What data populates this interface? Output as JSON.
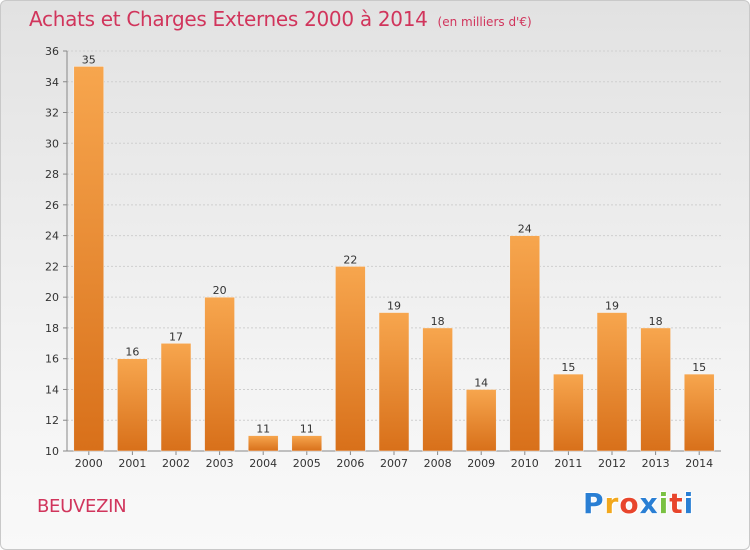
{
  "title": "Achats et Charges Externes 2000 à 2014",
  "unit": "(en milliers d'€)",
  "place": "BEUVEZIN",
  "logo": {
    "text": "Proxiti",
    "letters": [
      {
        "ch": "P",
        "color": "#2a7fd4"
      },
      {
        "ch": "r",
        "color": "#f2a81d"
      },
      {
        "ch": "o",
        "color": "#e8452c"
      },
      {
        "ch": "x",
        "color": "#2a7fd4"
      },
      {
        "ch": "i",
        "color": "#7ac142"
      },
      {
        "ch": "t",
        "color": "#e8452c"
      },
      {
        "ch": "i",
        "color": "#2a7fd4"
      }
    ]
  },
  "colors": {
    "bar_top": "#f7a64e",
    "bar_bottom": "#d8701a",
    "text": "#d1355c",
    "grid": "#cfcfcf"
  },
  "chart_data": {
    "type": "bar",
    "title": "Achats et Charges Externes 2000 à 2014",
    "subtitle": "(en milliers d'€)",
    "categories": [
      "2000",
      "2001",
      "2002",
      "2003",
      "2004",
      "2005",
      "2006",
      "2007",
      "2008",
      "2009",
      "2010",
      "2011",
      "2012",
      "2013",
      "2014"
    ],
    "values": [
      35,
      16,
      17,
      20,
      11,
      11,
      22,
      19,
      18,
      14,
      24,
      15,
      19,
      18,
      15
    ],
    "ylim": [
      10,
      36
    ],
    "yticks": [
      10,
      12,
      14,
      16,
      18,
      20,
      22,
      24,
      26,
      28,
      30,
      32,
      34,
      36
    ],
    "grid": true,
    "data_labels": true
  }
}
